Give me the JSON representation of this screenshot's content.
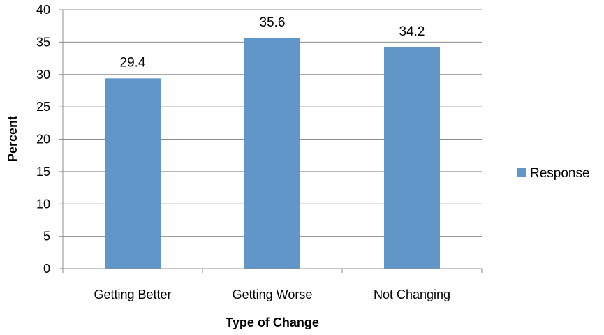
{
  "chart_data": {
    "type": "bar",
    "categories": [
      "Getting Better",
      "Getting Worse",
      "Not Changing"
    ],
    "series": [
      {
        "name": "Response",
        "values": [
          29.4,
          35.6,
          34.2
        ],
        "color": "#6196c8"
      }
    ],
    "data_labels": [
      "29.4",
      "35.6",
      "34.2"
    ],
    "xlabel": "Type of Change",
    "ylabel": "Percent",
    "ylim": [
      0,
      40
    ],
    "yticks": [
      0,
      5,
      10,
      15,
      20,
      25,
      30,
      35,
      40
    ],
    "grid": true,
    "legend_position": "right"
  }
}
